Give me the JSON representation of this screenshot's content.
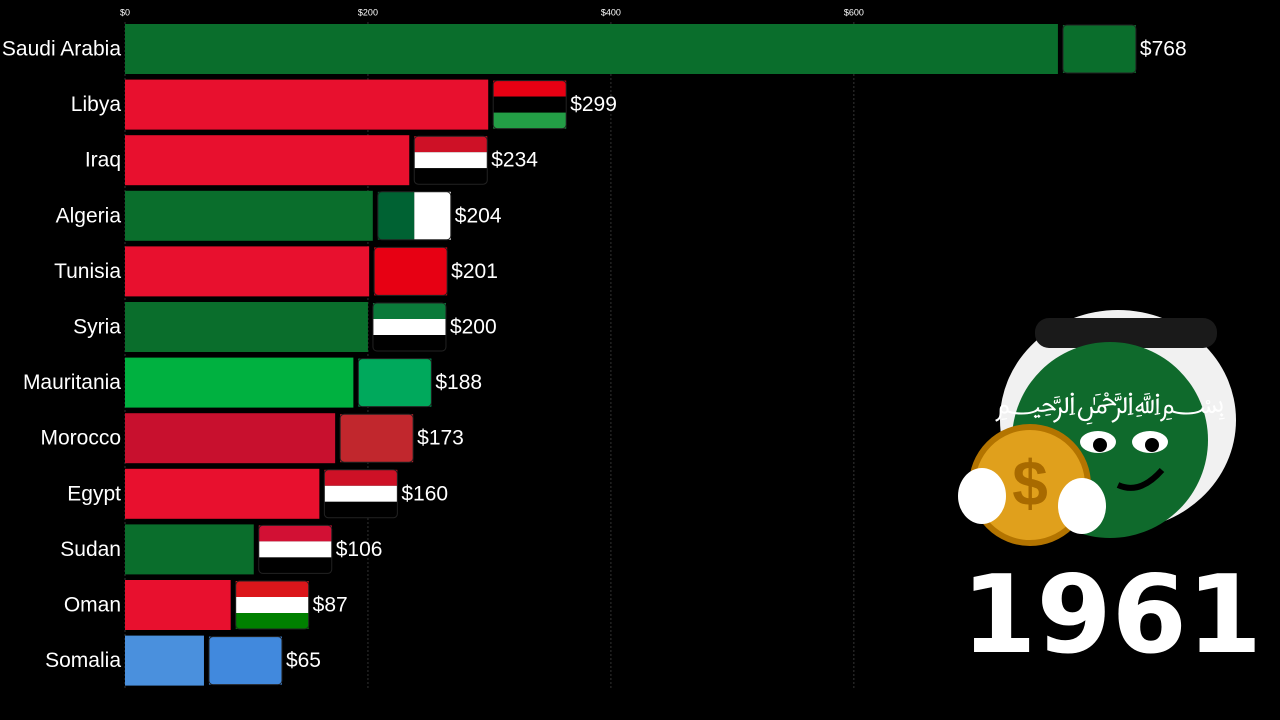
{
  "chart_data": {
    "type": "barh",
    "categories": [
      "Saudi Arabia",
      "Libya",
      "Iraq",
      "Algeria",
      "Tunisia",
      "Syria",
      "Mauritania",
      "Morocco",
      "Egypt",
      "Sudan",
      "Oman",
      "Somalia"
    ],
    "values": [
      768,
      299,
      234,
      204,
      201,
      200,
      188,
      173,
      160,
      106,
      87,
      65
    ],
    "value_labels": [
      "$768",
      "$299",
      "$234",
      "$204",
      "$201",
      "$200",
      "$188",
      "$173",
      "$160",
      "$106",
      "$87",
      "$65"
    ],
    "colors": [
      "#0a6e2c",
      "#e8102e",
      "#e8102e",
      "#0a6e2c",
      "#e8102e",
      "#0a6e2c",
      "#00b140",
      "#c8102e",
      "#e8102e",
      "#0a6e2c",
      "#e8102e",
      "#4a90dd"
    ],
    "xlim": [
      0,
      950
    ],
    "xticks": [
      {
        "value": 0,
        "label": "$0"
      },
      {
        "value": 200,
        "label": "$200"
      },
      {
        "value": 400,
        "label": "$400"
      },
      {
        "value": 600,
        "label": "$600"
      }
    ],
    "grid": true,
    "annotation": "1961"
  }
}
